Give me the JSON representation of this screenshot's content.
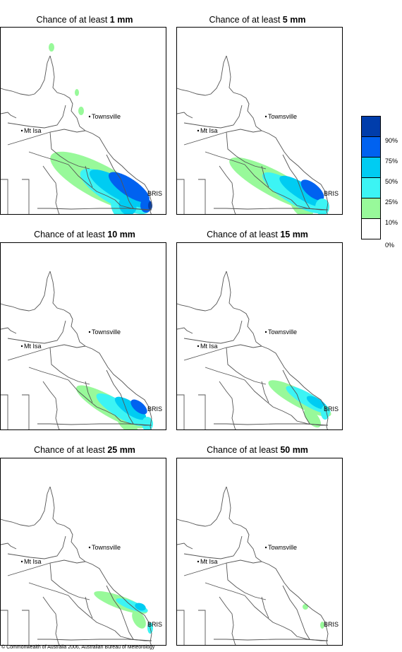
{
  "colors": {
    "band_10_25": "#98f99a",
    "band_25_50": "#3cf4f4",
    "band_50_75": "#00ccf2",
    "band_75_90": "#0062f0",
    "band_90_100": "#003dab",
    "band_0_10": "#ffffff"
  },
  "legend": {
    "labels": [
      "90%",
      "75%",
      "50%",
      "25%",
      "10%",
      "0%"
    ]
  },
  "places": {
    "townsville": "Townsville",
    "mt_isa": "Mt Isa",
    "bris": "BRIS"
  },
  "panels": [
    {
      "prefix": "Chance of at least ",
      "amount": "1 mm",
      "level": 0
    },
    {
      "prefix": "Chance of at least ",
      "amount": "5 mm",
      "level": 1
    },
    {
      "prefix": "Chance of at least ",
      "amount": "10 mm",
      "level": 2
    },
    {
      "prefix": "Chance of at least ",
      "amount": "15 mm",
      "level": 3
    },
    {
      "prefix": "Chance of at least ",
      "amount": "25 mm",
      "level": 4
    },
    {
      "prefix": "Chance of at least ",
      "amount": "50 mm",
      "level": 5
    }
  ],
  "copyright": "© Commonwealth of Australia 2006, Australian Bureau of Meteorology"
}
